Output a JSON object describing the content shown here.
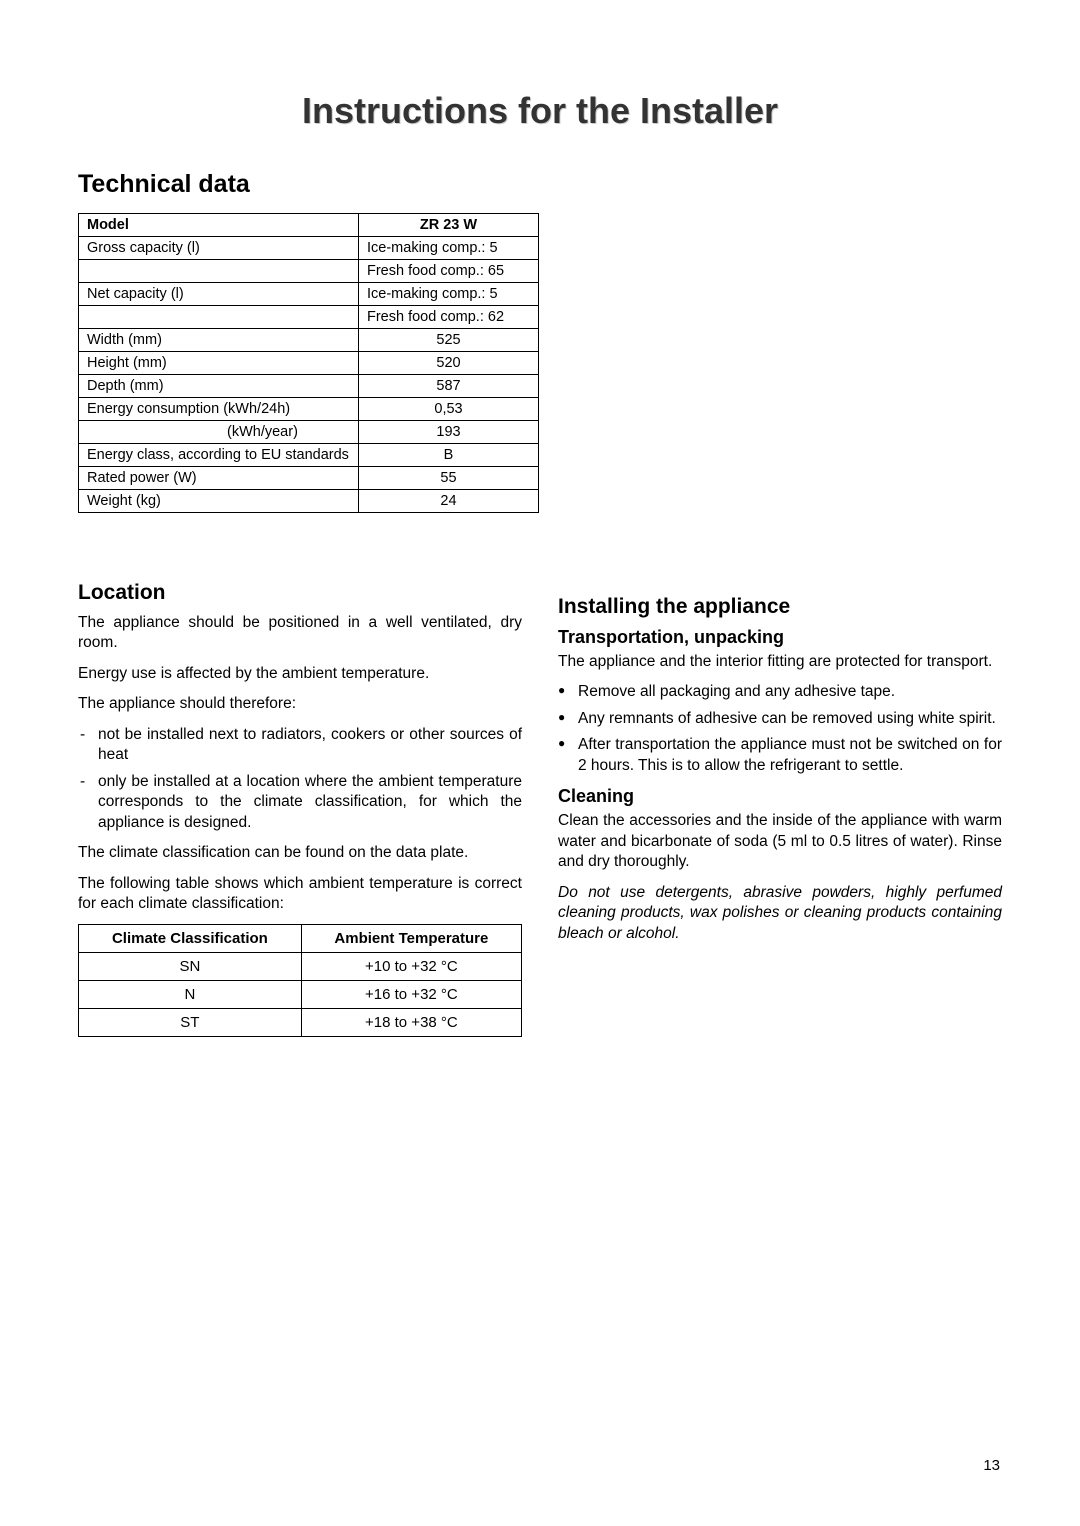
{
  "page": {
    "title": "Instructions for the Installer",
    "number": "13"
  },
  "tech": {
    "heading": "Technical data",
    "header_label": "Model",
    "header_value": "ZR 23 W",
    "rows": [
      {
        "label": "Gross capacity (l)",
        "value": "Ice-making comp.: 5",
        "align": "left"
      },
      {
        "label": "",
        "value": "Fresh food comp.: 65",
        "align": "left"
      },
      {
        "label": "Net capacity (l)",
        "value": "Ice-making comp.: 5",
        "align": "left"
      },
      {
        "label": "",
        "value": "Fresh food comp.: 62",
        "align": "left"
      },
      {
        "label": "Width (mm)",
        "value": "525",
        "align": "center"
      },
      {
        "label": "Height (mm)",
        "value": "520",
        "align": "center"
      },
      {
        "label": "Depth (mm)",
        "value": "587",
        "align": "center"
      },
      {
        "label": "Energy consumption    (kWh/24h)",
        "value": "0,53",
        "align": "center"
      },
      {
        "label": "(kWh/year)",
        "value": "193",
        "align": "center",
        "sub": true
      },
      {
        "label": "Energy class, according to EU standards",
        "value": "B",
        "align": "center"
      },
      {
        "label": "Rated power (W)",
        "value": "55",
        "align": "center"
      },
      {
        "label": "Weight (kg)",
        "value": "24",
        "align": "center"
      }
    ]
  },
  "location": {
    "heading": "Location",
    "p1": "The appliance should be positioned in a well ventilated, dry room.",
    "p2": "Energy use is affected by the ambient temperature.",
    "p3": "The appliance should therefore:",
    "bullets": [
      "not be installed next to radiators, cookers or other sources of heat",
      "only be installed at a location where the ambient temperature corresponds to the climate classification, for which the appliance is designed."
    ],
    "p4": "The climate classification can be found on the data plate.",
    "p5": "The following table shows which ambient temperature is correct for each climate classification:",
    "climate_h1": "Climate Classification",
    "climate_h2": "Ambient Temperature",
    "climate_rows": [
      {
        "c": "SN",
        "t": "+10 to +32 °C"
      },
      {
        "c": "N",
        "t": "+16 to +32 °C"
      },
      {
        "c": "ST",
        "t": "+18 to +38 °C"
      }
    ]
  },
  "install": {
    "heading": "Installing the appliance",
    "sub1": "Transportation, unpacking",
    "p1": "The appliance and the interior fitting are protected for transport.",
    "bullets": [
      "Remove all packaging and any adhesive tape.",
      "Any remnants of adhesive can be removed using white spirit.",
      "After transportation the appliance must not be switched on for 2 hours. This is to allow the refrigerant to settle."
    ],
    "sub2": "Cleaning",
    "p2": "Clean the accessories and the inside of the appliance with warm water and bicarbonate of soda (5 ml to 0.5 litres of water). Rinse and dry thoroughly.",
    "p3": "Do not use detergents, abrasive powders, highly perfumed cleaning products, wax polishes or cleaning products containing bleach or alcohol."
  }
}
